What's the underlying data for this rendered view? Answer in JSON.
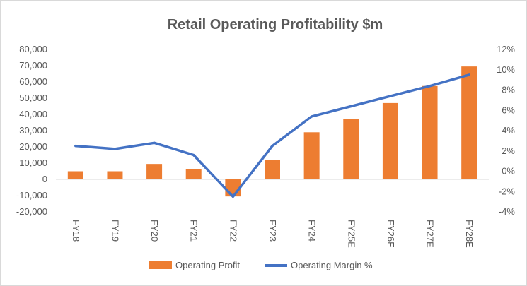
{
  "chart_data": {
    "type": "bar+line",
    "title": "Retail Operating Profitability $m",
    "categories": [
      "FY18",
      "FY19",
      "FY20",
      "FY21",
      "FY22",
      "FY23",
      "FY24",
      "FY25E",
      "FY26E",
      "FY27E",
      "FY28E"
    ],
    "series": [
      {
        "name": "Operating Profit",
        "type": "bar",
        "axis": "left",
        "color": "#ED7D31",
        "values": [
          5000,
          5000,
          9500,
          6500,
          -10500,
          12000,
          29000,
          37000,
          47000,
          57500,
          69500
        ]
      },
      {
        "name": "Operating Margin %",
        "type": "line",
        "axis": "right",
        "color": "#4472C4",
        "values": [
          2.5,
          2.2,
          2.8,
          1.6,
          -2.5,
          2.5,
          5.4,
          6.4,
          7.4,
          8.4,
          9.5
        ]
      }
    ],
    "y_left": {
      "min": -20000,
      "max": 80000,
      "ticks": [
        -20000,
        -10000,
        0,
        10000,
        20000,
        30000,
        40000,
        50000,
        60000,
        70000,
        80000
      ],
      "tick_labels": [
        "-20,000",
        "-10,000",
        "0",
        "10,000",
        "20,000",
        "30,000",
        "40,000",
        "50,000",
        "60,000",
        "70,000",
        "80,000"
      ]
    },
    "y_right": {
      "min": -4,
      "max": 12,
      "ticks": [
        -4,
        -2,
        0,
        2,
        4,
        6,
        8,
        10,
        12
      ],
      "tick_labels": [
        "-4%",
        "-2%",
        "0%",
        "2%",
        "4%",
        "6%",
        "8%",
        "10%",
        "12%"
      ]
    },
    "grid": false,
    "legend": "bottom"
  }
}
